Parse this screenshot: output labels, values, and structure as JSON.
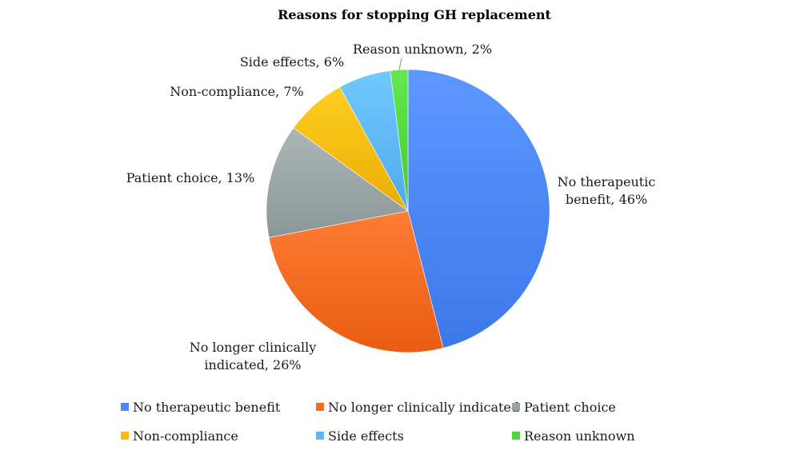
{
  "chart_data": {
    "type": "pie",
    "title": "Reasons for stopping GH replacement",
    "slices": [
      {
        "label": "No therapeutic benefit",
        "value": 46,
        "data_label": [
          "No therapeutic",
          "benefit, 46%"
        ],
        "color": "#4a86f7"
      },
      {
        "label": "No longer clinically indicated",
        "value": 26,
        "data_label": [
          "No longer clinically",
          "indicated, 26%"
        ],
        "color": "#f76a21"
      },
      {
        "label": "Patient choice",
        "value": 13,
        "data_label": [
          "Patient choice, 13%"
        ],
        "color": "#9aa4a5"
      },
      {
        "label": "Non-compliance",
        "value": 7,
        "data_label": [
          "Non-compliance, 7%"
        ],
        "color": "#f8bb10"
      },
      {
        "label": "Side effects",
        "value": 6,
        "data_label": [
          "Side effects, 6%"
        ],
        "color": "#5eb7fa"
      },
      {
        "label": "Reason unknown",
        "value": 2,
        "data_label": [
          "Reason unknown, 2%"
        ],
        "color": "#52d63e"
      }
    ],
    "legend_position": "bottom",
    "start_angle": "12 o'clock",
    "direction": "clockwise"
  }
}
